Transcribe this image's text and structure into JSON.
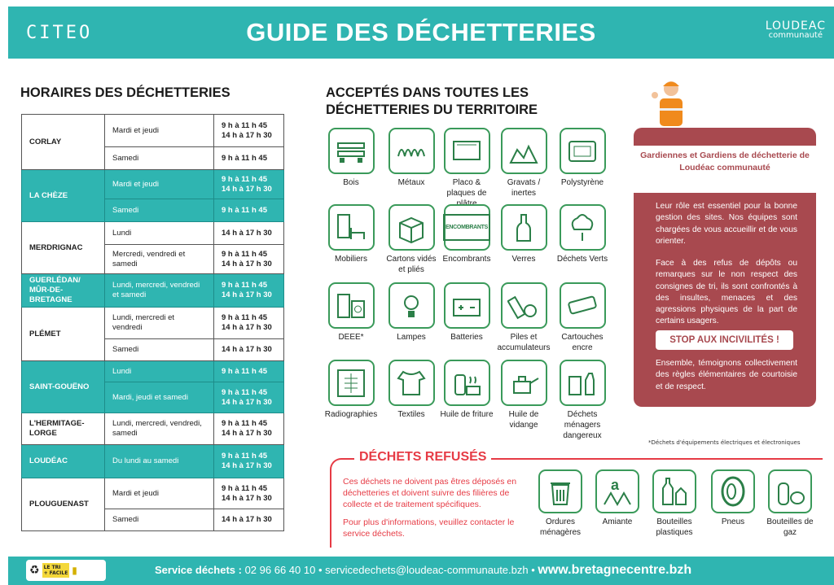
{
  "header": {
    "logo_left": "CITEO",
    "title": "GUIDE DES DÉCHETTERIES",
    "logo_right_line1": "LOUDEAC",
    "logo_right_line2": "communauté"
  },
  "schedule": {
    "title": "HORAIRES DES DÉCHETTERIES",
    "sites": [
      {
        "name": "CORLAY",
        "highlight": false,
        "slots": [
          {
            "days": "Mardi et jeudi",
            "hours": "9 h à 11 h 45\n14 h à 17 h 30"
          },
          {
            "days": "Samedi",
            "hours": "9 h à 11 h 45"
          }
        ]
      },
      {
        "name": "LA CHÈZE",
        "highlight": true,
        "slots": [
          {
            "days": "Mardi et jeudi",
            "hours": "9 h à 11 h 45\n14 h à 17 h 30"
          },
          {
            "days": "Samedi",
            "hours": "9 h à 11 h 45"
          }
        ]
      },
      {
        "name": "MERDRIGNAC",
        "highlight": false,
        "slots": [
          {
            "days": "Lundi",
            "hours": "14 h à 17 h 30"
          },
          {
            "days": "Mercredi, vendredi et samedi",
            "hours": "9 h à 11 h 45\n14 h à 17 h 30"
          }
        ]
      },
      {
        "name": "GUERLÉDAN/ MÛR-DE-BRETAGNE",
        "highlight": true,
        "slots": [
          {
            "days": "Lundi, mercredi, vendredi et samedi",
            "hours": "9 h à 11 h 45\n14 h à 17 h 30"
          }
        ]
      },
      {
        "name": "PLÉMET",
        "highlight": false,
        "slots": [
          {
            "days": "Lundi, mercredi et vendredi",
            "hours": "9 h à 11 h 45\n14 h à 17 h 30"
          },
          {
            "days": "Samedi",
            "hours": "14 h à 17 h 30"
          }
        ]
      },
      {
        "name": "SAINT-GOUËNO",
        "highlight": true,
        "slots": [
          {
            "days": "Lundi",
            "hours": "9 h à 11 h 45"
          },
          {
            "days": "Mardi, jeudi et samedi",
            "hours": "9 h à 11 h 45\n14 h à 17 h 30"
          }
        ]
      },
      {
        "name": "L'HERMITAGE-LORGE",
        "highlight": false,
        "slots": [
          {
            "days": "Lundi, mercredi, vendredi, samedi",
            "hours": "9 h à 11 h 45\n14 h à 17 h 30"
          }
        ]
      },
      {
        "name": "LOUDÉAC",
        "highlight": true,
        "slots": [
          {
            "days": "Du lundi au samedi",
            "hours": "9 h à 11 h 45\n14 h à 17 h 30"
          }
        ]
      },
      {
        "name": "PLOUGUENAST",
        "highlight": false,
        "slots": [
          {
            "days": "Mardi et jeudi",
            "hours": "9 h à 11 h 45\n14 h à 17 h 30"
          },
          {
            "days": "Samedi",
            "hours": "14 h à 17 h 30"
          }
        ]
      }
    ]
  },
  "accepted": {
    "title": "ACCEPTÉS DANS TOUTES LES DÉCHETTERIES DU TERRITOIRE",
    "items": [
      {
        "label": "Bois",
        "icon": "pallet-icon"
      },
      {
        "label": "Métaux",
        "icon": "spring-icon"
      },
      {
        "label": "Placo & plaques de plâtre",
        "icon": "plaster-board-icon"
      },
      {
        "label": "Gravats / inertes",
        "icon": "rubble-icon"
      },
      {
        "label": "Polystyrène",
        "icon": "polystyrene-icon"
      },
      {
        "label": "Mobiliers",
        "icon": "furniture-icon"
      },
      {
        "label": "Cartons vidés et pliés",
        "icon": "cardboard-icon"
      },
      {
        "label": "Encombrants",
        "icon": "bulky-waste-icon",
        "icon_text": "ENCOMBRANTS"
      },
      {
        "label": "Verres",
        "icon": "glass-bottle-icon"
      },
      {
        "label": "Déchets Verts",
        "icon": "tree-icon"
      },
      {
        "label": "DEEE*",
        "icon": "appliances-icon"
      },
      {
        "label": "Lampes",
        "icon": "lamp-icon"
      },
      {
        "label": "Batteries",
        "icon": "battery-icon"
      },
      {
        "label": "Piles et accumulateurs",
        "icon": "cells-icon"
      },
      {
        "label": "Cartouches encre",
        "icon": "ink-cartridge-icon"
      },
      {
        "label": "Radiographies",
        "icon": "xray-icon"
      },
      {
        "label": "Textiles",
        "icon": "textile-icon"
      },
      {
        "label": "Huile de friture",
        "icon": "frying-oil-icon"
      },
      {
        "label": "Huile de vidange",
        "icon": "oil-can-icon"
      },
      {
        "label": "Déchets ménagers dangereux",
        "icon": "hazardous-icon"
      }
    ]
  },
  "guardians": {
    "title": "Gardiennes et Gardiens de déchetterie de Loudéac communauté",
    "p1": "Leur rôle est essentiel pour la bonne gestion des sites. Nos équipes sont chargées de vous accueillir et de vous orienter.",
    "p2": "Face à des refus de dépôts ou remarques sur le non respect des consignes de tri, ils sont confrontés à des insultes, menaces et des agressions physiques de la part de certains usagers.",
    "stop": "STOP AUX INCIVILITÉS !",
    "p3": "Ensemble, témoignons collectivement des règles élémentaires de courtoisie et de respect.",
    "color": "#a8494f"
  },
  "footnote": "*Déchets d'équipements électriques et électroniques",
  "refused": {
    "title": "DÉCHETS REFUSÉS",
    "p1": "Ces déchets ne doivent pas êtres déposés en déchetteries et doivent suivre des filières de collecte et de traitement spécifiques.",
    "p2": "Pour plus d'informations, veuillez contacter le service déchets.",
    "color": "#e63b45",
    "items": [
      {
        "label": "Ordures ménagères",
        "icon": "trash-can-icon"
      },
      {
        "label": "Amiante",
        "icon": "asbestos-icon",
        "icon_text": "a"
      },
      {
        "label": "Bouteilles plastiques",
        "icon": "plastic-bottles-icon"
      },
      {
        "label": "Pneus",
        "icon": "tire-icon"
      },
      {
        "label": "Bouteilles de gaz",
        "icon": "gas-bottle-icon"
      }
    ]
  },
  "footer": {
    "badge_line1": "LE TRI",
    "badge_line2": "+ FACILE",
    "label": "Service déchets :",
    "phone": "02 96 66 40 10",
    "email": "servicedechets@loudeac-communaute.bzh",
    "website": "www.bretagnecentre.bzh"
  },
  "colors": {
    "teal": "#2fb5b1",
    "green_icon": "#3a9a5a"
  }
}
